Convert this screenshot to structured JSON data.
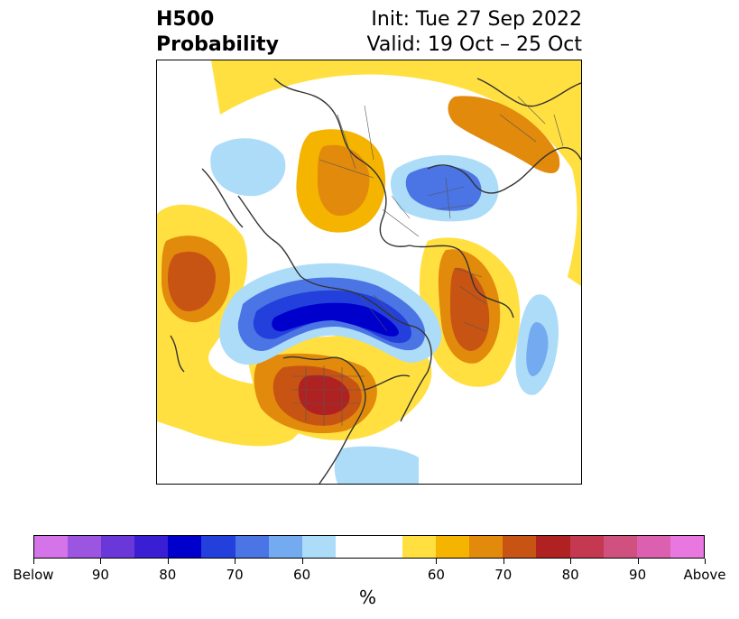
{
  "title": {
    "left_line1": "H500",
    "left_line2": "Probability",
    "right_line1": "Init: Tue 27 Sep 2022",
    "right_line2": "Valid: 19 Oct – 25 Oct"
  },
  "map": {
    "projection": "north-polar-stereographic",
    "outline_color": "#333333"
  },
  "colorbar": {
    "unit": "%",
    "colors": [
      "#d573e8",
      "#9b55e0",
      "#6a38d8",
      "#3a1ed4",
      "#0000cc",
      "#2340dc",
      "#4b74e4",
      "#74aaf0",
      "#addcf8",
      "#ffffff",
      "#ffe040",
      "#f4b400",
      "#e28a0c",
      "#c85414",
      "#b02222",
      "#c43850",
      "#d05080",
      "#dc60b0",
      "#e878e0"
    ],
    "tick_labels": [
      "Below",
      "90",
      "80",
      "70",
      "60",
      "60",
      "70",
      "80",
      "90",
      "Above"
    ]
  }
}
